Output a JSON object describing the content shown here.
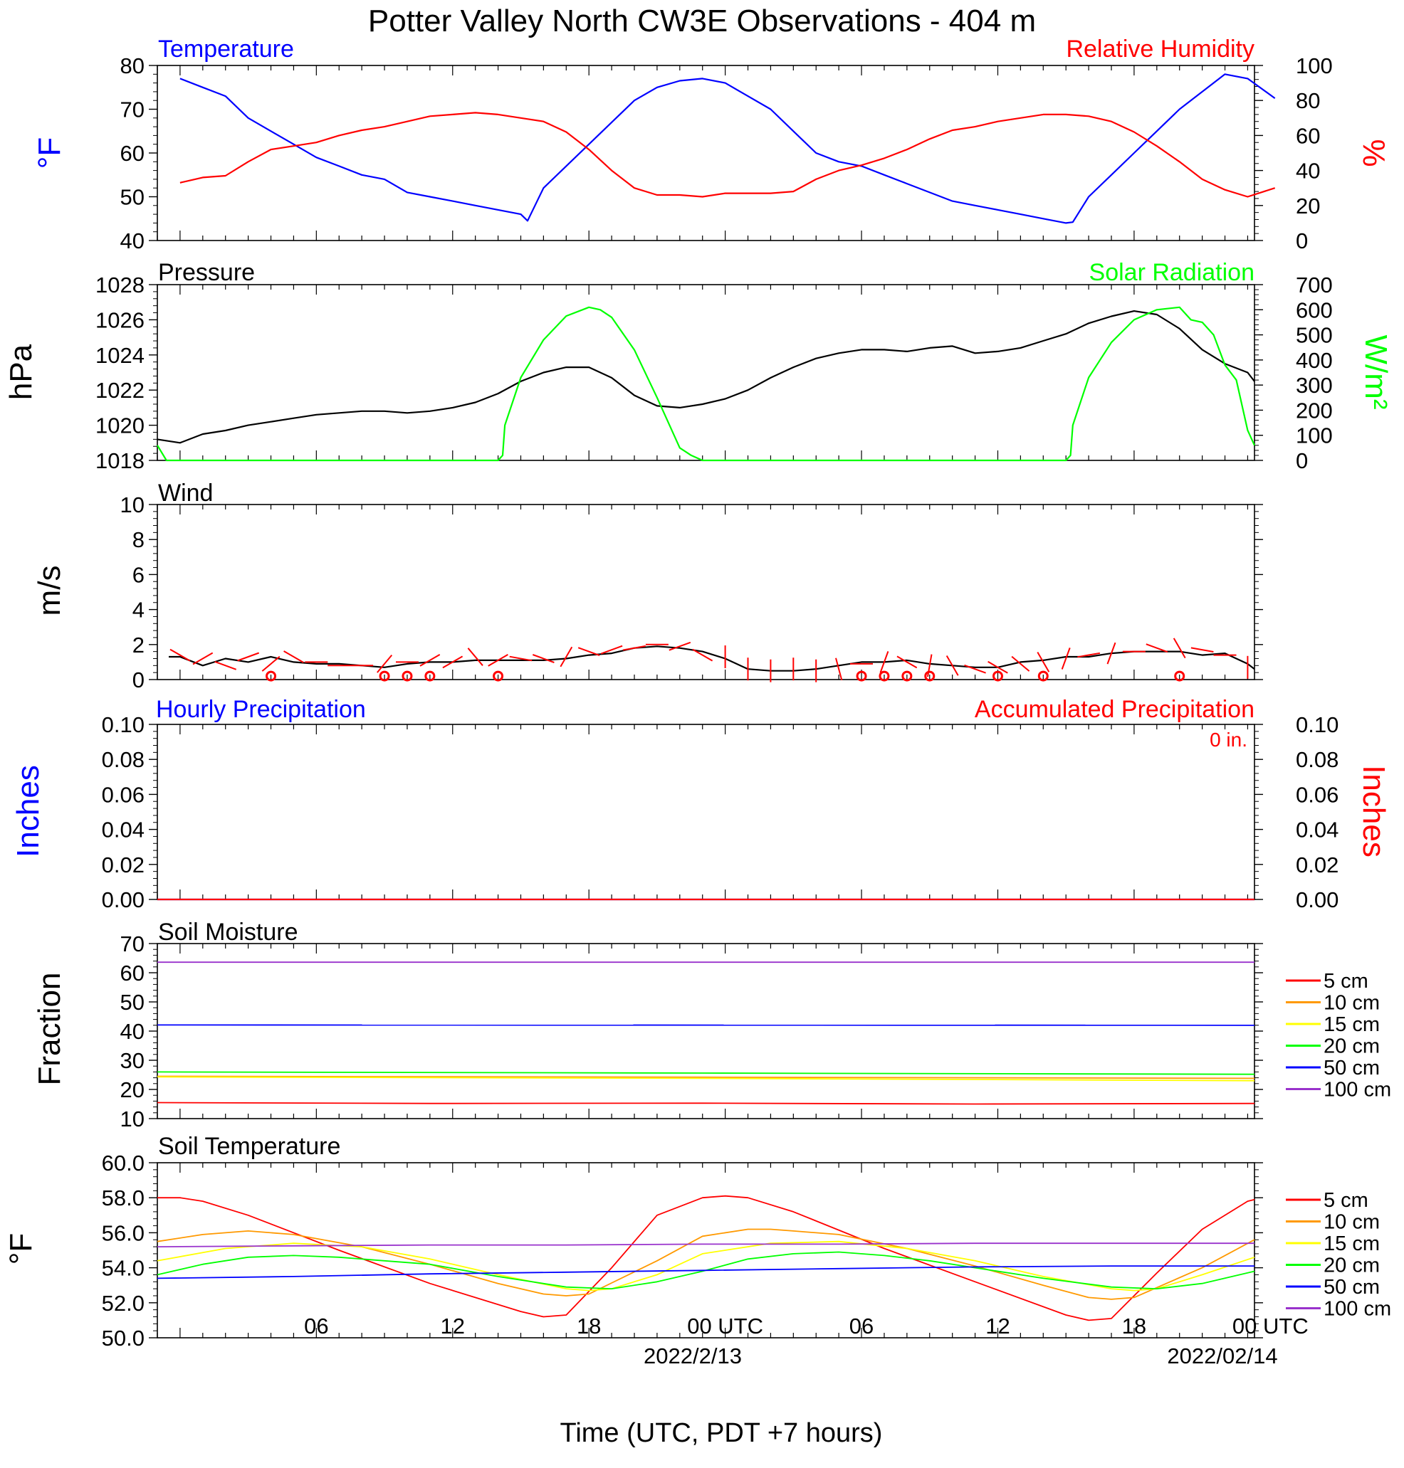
{
  "title": "Potter Valley North CW3E Observations - 404 m",
  "x_axis": {
    "label": "Time (UTC, PDT +7 hours)",
    "ticks": [
      "06",
      "12",
      "18",
      "00 UTC",
      "06",
      "12",
      "18",
      "00 UTC"
    ],
    "dates": [
      "2022/2/13",
      "2022/02/14"
    ]
  },
  "colors": {
    "red": "#ff0000",
    "blue": "#0000ff",
    "green": "#00ff00",
    "black": "#000000",
    "orange": "#ff9900",
    "yellow": "#ffff00",
    "purple": "#9932cc"
  },
  "chart_data": [
    {
      "type": "line",
      "title": "Temperature",
      "title_right": "Relative Humidity",
      "ylabel": "°F",
      "ylabel_right": "%",
      "ylim": [
        40,
        80
      ],
      "ylim_right": [
        0,
        100
      ],
      "yticks": [
        "40",
        "50",
        "60",
        "70",
        "80"
      ],
      "yticks_right": [
        "0",
        "20",
        "40",
        "60",
        "80",
        "100"
      ],
      "series": [
        {
          "name": "Temperature",
          "axis": "left",
          "color": "#0000ff",
          "x": [
            1,
            2,
            3,
            4,
            5,
            6,
            7,
            8,
            9,
            10,
            11,
            12,
            13,
            14,
            15,
            16,
            16.3,
            17,
            18,
            19,
            20,
            21,
            22,
            23,
            24,
            25,
            26,
            27,
            28,
            29,
            30,
            31,
            32,
            33,
            34,
            35,
            36,
            37,
            38,
            39,
            40,
            40.3,
            41,
            42,
            43,
            44,
            45,
            46,
            47,
            48,
            49.2
          ],
          "y": [
            77,
            75,
            73,
            68,
            65,
            62,
            59,
            57,
            55,
            54,
            51,
            50,
            49,
            48,
            47,
            46,
            44.5,
            52,
            57,
            62,
            67,
            72,
            75,
            76.5,
            77,
            76,
            73,
            70,
            65,
            60,
            58,
            57,
            55,
            53,
            51,
            49,
            48,
            47,
            46,
            45,
            44,
            44.2,
            50,
            55,
            60,
            65,
            70,
            74,
            78,
            77,
            72.5
          ]
        },
        {
          "name": "Relative Humidity",
          "axis": "right",
          "color": "#ff0000",
          "x": [
            1,
            2,
            3,
            4,
            5,
            6,
            7,
            8,
            9,
            10,
            11,
            12,
            13,
            14,
            15,
            16,
            17,
            18,
            19,
            20,
            21,
            22,
            23,
            24,
            25,
            26,
            27,
            28,
            29,
            30,
            31,
            32,
            33,
            34,
            35,
            36,
            37,
            38,
            39,
            40,
            41,
            42,
            43,
            44,
            45,
            46,
            47,
            48,
            49.2
          ],
          "y": [
            33,
            36,
            37,
            45,
            52,
            54,
            56,
            60,
            63,
            65,
            68,
            71,
            72,
            73,
            72,
            70,
            68,
            62,
            52,
            40,
            30,
            26,
            26,
            25,
            27,
            27,
            27,
            28,
            35,
            40,
            43,
            47,
            52,
            58,
            63,
            65,
            68,
            70,
            72,
            72,
            71,
            68,
            62,
            54,
            45,
            35,
            29,
            25,
            30
          ]
        }
      ]
    },
    {
      "type": "line",
      "title": "Pressure",
      "title_right": "Solar Radiation",
      "ylabel": "hPa",
      "ylabel_right": "W/m²",
      "ylim": [
        1018,
        1028
      ],
      "ylim_right": [
        0,
        700
      ],
      "yticks": [
        "1018",
        "1020",
        "1022",
        "1024",
        "1026",
        "1028"
      ],
      "yticks_right": [
        "0",
        "100",
        "200",
        "300",
        "400",
        "500",
        "600",
        "700"
      ],
      "series": [
        {
          "name": "Pressure",
          "axis": "left",
          "color": "#000000",
          "x": [
            0,
            1,
            2,
            3,
            4,
            5,
            6,
            7,
            8,
            9,
            10,
            11,
            12,
            13,
            14,
            15,
            16,
            17,
            18,
            19,
            20,
            21,
            22,
            23,
            24,
            25,
            26,
            27,
            28,
            29,
            30,
            31,
            32,
            33,
            34,
            35,
            36,
            37,
            38,
            39,
            40,
            41,
            42,
            43,
            44,
            45,
            46,
            47,
            48,
            48.3
          ],
          "y": [
            1019.2,
            1019.0,
            1019.5,
            1019.7,
            1020.0,
            1020.2,
            1020.4,
            1020.6,
            1020.7,
            1020.8,
            1020.8,
            1020.7,
            1020.8,
            1021.0,
            1021.3,
            1021.8,
            1022.5,
            1023.0,
            1023.3,
            1023.3,
            1022.7,
            1021.7,
            1021.1,
            1021.0,
            1021.2,
            1021.5,
            1022.0,
            1022.7,
            1023.3,
            1023.8,
            1024.1,
            1024.3,
            1024.3,
            1024.2,
            1024.4,
            1024.5,
            1024.1,
            1024.2,
            1024.4,
            1024.8,
            1025.2,
            1025.8,
            1026.2,
            1026.5,
            1026.3,
            1025.5,
            1024.3,
            1023.5,
            1023.0,
            1022.5
          ]
        },
        {
          "name": "Solar Radiation",
          "axis": "right",
          "color": "#00ff00",
          "x": [
            0,
            0.4,
            1,
            15,
            15.2,
            15.3,
            16,
            17,
            18,
            19,
            19.5,
            20,
            21,
            22,
            23,
            23.5,
            24,
            40,
            40.2,
            40.3,
            41,
            42,
            43,
            44,
            45,
            45.5,
            46,
            46.5,
            47,
            47.5,
            47.8,
            48,
            48.3
          ],
          "y": [
            60,
            0,
            0,
            0,
            20,
            140,
            330,
            480,
            575,
            610,
            600,
            570,
            440,
            250,
            50,
            20,
            0,
            0,
            20,
            140,
            330,
            470,
            560,
            600,
            610,
            560,
            550,
            500,
            380,
            320,
            200,
            120,
            60
          ]
        }
      ]
    },
    {
      "type": "line",
      "title": "Wind",
      "ylabel": "m/s",
      "ylim": [
        0,
        10
      ],
      "yticks": [
        "0",
        "2",
        "4",
        "6",
        "8",
        "10"
      ],
      "series": [
        {
          "name": "Wind",
          "color": "#000000",
          "x": [
            0.5,
            1,
            2,
            3,
            4,
            5,
            6,
            7,
            8,
            9,
            10,
            11,
            12,
            13,
            14,
            15,
            16,
            17,
            18,
            19,
            20,
            21,
            22,
            23,
            24,
            25,
            26,
            27,
            28,
            29,
            30,
            31,
            32,
            33,
            34,
            35,
            36,
            37,
            38,
            39,
            40,
            41,
            42,
            43,
            44,
            45,
            46,
            47,
            48,
            48.3
          ],
          "y": [
            1.3,
            1.3,
            0.8,
            1.2,
            1.0,
            1.3,
            1.0,
            0.9,
            0.9,
            0.8,
            0.7,
            0.9,
            1.0,
            1.0,
            1.1,
            1.1,
            1.1,
            1.1,
            1.2,
            1.4,
            1.5,
            1.8,
            1.9,
            1.8,
            1.6,
            1.2,
            0.6,
            0.5,
            0.5,
            0.6,
            0.8,
            1.0,
            1.0,
            1.1,
            0.9,
            0.8,
            0.7,
            0.7,
            1.0,
            1.1,
            1.3,
            1.3,
            1.5,
            1.6,
            1.6,
            1.6,
            1.4,
            1.5,
            0.9,
            0.6
          ]
        }
      ]
    },
    {
      "type": "line",
      "title": "Hourly Precipitation",
      "title_right": "Accumulated Precipitation",
      "annotation": "0 in.",
      "ylabel": "Inches",
      "ylabel_right": "Inches",
      "ylim": [
        0,
        0.1
      ],
      "ylim_right": [
        0,
        0.1
      ],
      "yticks": [
        "0.00",
        "0.02",
        "0.04",
        "0.06",
        "0.08",
        "0.10"
      ],
      "yticks_right": [
        "0.00",
        "0.02",
        "0.04",
        "0.06",
        "0.08",
        "0.10"
      ],
      "series": [
        {
          "name": "Hourly Precipitation",
          "color": "#0000ff",
          "x": [
            0,
            48.3
          ],
          "y": [
            0,
            0
          ]
        },
        {
          "name": "Accumulated Precipitation",
          "color": "#ff0000",
          "x": [
            0,
            48.3
          ],
          "y": [
            0,
            0
          ]
        }
      ]
    },
    {
      "type": "line",
      "title": "Soil Moisture",
      "ylabel": "Fraction",
      "ylim": [
        10,
        70
      ],
      "yticks": [
        "10",
        "20",
        "30",
        "40",
        "50",
        "60",
        "70"
      ],
      "legend": "right",
      "series": [
        {
          "name": "5 cm",
          "color": "#ff0000",
          "x": [
            0,
            12,
            24,
            36,
            48.3
          ],
          "y": [
            15.5,
            15.2,
            15.3,
            15.0,
            15.2
          ]
        },
        {
          "name": "10 cm",
          "color": "#ff9900",
          "x": [
            0,
            24,
            48.3
          ],
          "y": [
            24.5,
            24.2,
            23.8
          ]
        },
        {
          "name": "15 cm",
          "color": "#ffff00",
          "x": [
            0,
            24,
            48.3
          ],
          "y": [
            24.3,
            23.8,
            23.0
          ]
        },
        {
          "name": "20 cm",
          "color": "#00ff00",
          "x": [
            0,
            24,
            48.3
          ],
          "y": [
            26.0,
            25.6,
            25.2
          ]
        },
        {
          "name": "50 cm",
          "color": "#0000ff",
          "x": [
            0,
            48.3
          ],
          "y": [
            42.1,
            42.0
          ]
        },
        {
          "name": "100 cm",
          "color": "#9932cc",
          "x": [
            0,
            48.3
          ],
          "y": [
            63.6,
            63.6
          ]
        }
      ]
    },
    {
      "type": "line",
      "title": "Soil Temperature",
      "ylabel": "°F",
      "ylim": [
        50,
        60
      ],
      "yticks": [
        "50.0",
        "52.0",
        "54.0",
        "56.0",
        "58.0",
        "60.0"
      ],
      "legend": "right",
      "series": [
        {
          "name": "5 cm",
          "color": "#ff0000",
          "x": [
            0,
            1,
            2,
            4,
            8,
            12,
            16,
            17,
            18,
            20,
            22,
            24,
            25,
            26,
            28,
            32,
            36,
            40,
            41,
            42,
            44,
            46,
            48,
            48.3
          ],
          "y": [
            58.0,
            58.0,
            57.8,
            57.0,
            55.0,
            53.1,
            51.5,
            51.2,
            51.3,
            54.0,
            57.0,
            58.0,
            58.1,
            58.0,
            57.2,
            55.1,
            53.2,
            51.3,
            51.0,
            51.1,
            53.7,
            56.2,
            57.8,
            57.9
          ]
        },
        {
          "name": "10 cm",
          "color": "#ff9900",
          "x": [
            0,
            2,
            3,
            4,
            6,
            9,
            12,
            15,
            17,
            18,
            19,
            22,
            24,
            26,
            27,
            28,
            30,
            33,
            36,
            39,
            41,
            42,
            43,
            46,
            48.3
          ],
          "y": [
            55.5,
            55.9,
            56.0,
            56.1,
            55.9,
            55.2,
            54.2,
            53.1,
            52.5,
            52.4,
            52.5,
            54.4,
            55.8,
            56.2,
            56.2,
            56.1,
            55.9,
            55.1,
            54.1,
            53.0,
            52.3,
            52.2,
            52.3,
            54.0,
            55.6
          ]
        },
        {
          "name": "15 cm",
          "color": "#ffff00",
          "x": [
            0,
            3,
            6,
            9,
            12,
            15,
            18,
            19,
            20,
            22,
            24,
            27,
            30,
            33,
            36,
            39,
            42,
            43,
            44,
            46,
            48.3
          ],
          "y": [
            54.4,
            55.1,
            55.4,
            55.2,
            54.5,
            53.6,
            52.8,
            52.7,
            52.8,
            53.6,
            54.8,
            55.4,
            55.5,
            55.1,
            54.4,
            53.5,
            52.8,
            52.7,
            52.8,
            53.6,
            54.6
          ]
        },
        {
          "name": "20 cm",
          "color": "#00ff00",
          "x": [
            0,
            2,
            4,
            6,
            8,
            10,
            12,
            15,
            18,
            20,
            22,
            24,
            26,
            28,
            30,
            32,
            34,
            36,
            39,
            42,
            44,
            46,
            48.3
          ],
          "y": [
            53.6,
            54.2,
            54.6,
            54.7,
            54.6,
            54.4,
            54.2,
            53.5,
            52.9,
            52.8,
            53.2,
            53.8,
            54.5,
            54.8,
            54.9,
            54.7,
            54.4,
            54.0,
            53.4,
            52.9,
            52.8,
            53.1,
            53.8
          ]
        },
        {
          "name": "50 cm",
          "color": "#0000ff",
          "x": [
            0,
            6,
            12,
            18,
            24,
            30,
            36,
            42,
            48.3
          ],
          "y": [
            53.4,
            53.5,
            53.65,
            53.75,
            53.85,
            53.95,
            54.05,
            54.1,
            54.1
          ]
        },
        {
          "name": "100 cm",
          "color": "#9932cc",
          "x": [
            0,
            6,
            12,
            18,
            24,
            30,
            36,
            42,
            48.3
          ],
          "y": [
            55.2,
            55.25,
            55.3,
            55.3,
            55.35,
            55.35,
            55.4,
            55.4,
            55.4
          ]
        }
      ]
    }
  ],
  "wind_barbs": {
    "x": [
      1,
      2,
      3,
      4,
      5,
      6,
      7,
      8,
      9,
      10,
      11,
      12,
      13,
      14,
      15,
      16,
      17,
      18,
      19,
      20,
      21,
      22,
      23,
      24,
      25,
      26,
      27,
      28,
      29,
      30,
      31,
      32,
      33,
      34,
      35,
      36,
      37,
      38,
      39,
      40,
      41,
      42,
      43,
      44,
      45,
      46,
      47,
      48
    ],
    "speed": [
      1.4,
      1.2,
      0.8,
      1.3,
      0.9,
      1.3,
      1.0,
      0.8,
      0.8,
      0.9,
      1.0,
      1.1,
      1.0,
      1.3,
      1.1,
      1.2,
      1.2,
      1.3,
      1.6,
      1.7,
      1.8,
      2.0,
      1.9,
      1.4,
      1.3,
      0.6,
      0.5,
      0.6,
      0.5,
      0.6,
      0.9,
      1.0,
      1.0,
      0.8,
      0.8,
      0.6,
      0.7,
      0.9,
      1.0,
      1.2,
      1.4,
      1.5,
      1.6,
      1.8,
      1.8,
      1.7,
      1.4,
      0.7
    ],
    "dir": [
      300,
      60,
      290,
      250,
      230,
      300,
      270,
      90,
      270,
      220,
      90,
      240,
      60,
      320,
      240,
      280,
      290,
      210,
      290,
      250,
      260,
      270,
      250,
      300,
      0,
      0,
      0,
      0,
      0,
      345,
      270,
      20,
      300,
      10,
      330,
      290,
      300,
      310,
      330,
      20,
      80,
      200,
      270,
      290,
      330,
      280,
      270,
      0
    ],
    "calm_x": [
      5,
      10,
      11,
      12,
      15,
      31,
      32,
      33,
      34,
      37,
      39,
      45
    ]
  }
}
